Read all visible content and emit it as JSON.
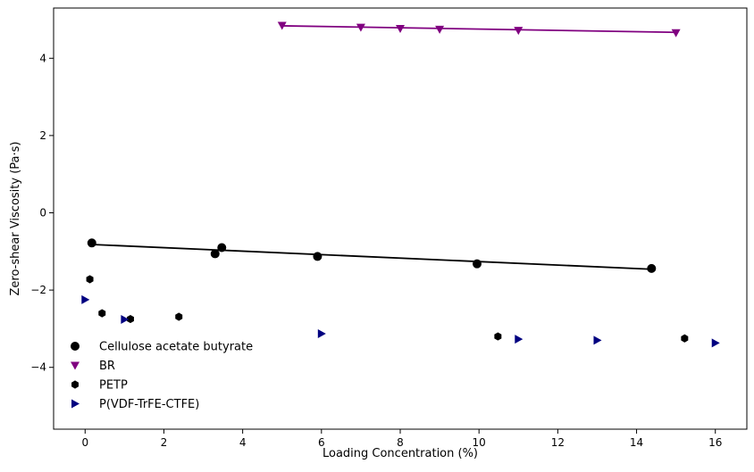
{
  "chart_data": {
    "type": "scatter",
    "title": "",
    "xlabel": "Loading Concentration (%)",
    "ylabel": "Zero-shear Viscosity (Pa·s)",
    "xlim": [
      -0.8,
      16.8
    ],
    "ylim": [
      -5.6,
      5.3
    ],
    "xticks": [
      0,
      2,
      4,
      6,
      8,
      10,
      12,
      14,
      16
    ],
    "yticks": [
      -4,
      -2,
      0,
      2,
      4
    ],
    "grid": false,
    "legend_position": "lower-left",
    "series": [
      {
        "name": "Cellulose acetate butyrate",
        "marker": "circle",
        "color": "#000000",
        "x": [
          0.17,
          3.3,
          3.47,
          5.9,
          9.95,
          14.38
        ],
        "y": [
          -0.78,
          -1.06,
          -0.9,
          -1.13,
          -1.32,
          -1.44
        ],
        "fit": {
          "x": [
            0.17,
            14.38
          ],
          "y": [
            -0.82,
            -1.46
          ],
          "color": "#000000"
        }
      },
      {
        "name": "BR",
        "marker": "triangle-down",
        "color": "#800080",
        "x": [
          5.0,
          7.0,
          8.0,
          9.0,
          11.0,
          15.0
        ],
        "y": [
          4.85,
          4.8,
          4.77,
          4.75,
          4.72,
          4.66
        ],
        "fit": {
          "x": [
            5.0,
            15.0
          ],
          "y": [
            4.84,
            4.67
          ],
          "color": "#800080"
        }
      },
      {
        "name": "PETP",
        "marker": "hexagon",
        "color": "#000000",
        "x": [
          0.12,
          0.43,
          1.15,
          2.38,
          10.48,
          15.22
        ],
        "y": [
          -1.72,
          -2.6,
          -2.75,
          -2.69,
          -3.2,
          -3.25
        ]
      },
      {
        "name": "P(VDF-TrFE-CTFE)",
        "marker": "triangle-right",
        "color": "#000080",
        "x": [
          0.0,
          1.0,
          6.0,
          11.0,
          13.0,
          16.0
        ],
        "y": [
          -2.25,
          -2.76,
          -3.13,
          -3.27,
          -3.3,
          -3.37
        ]
      }
    ]
  }
}
